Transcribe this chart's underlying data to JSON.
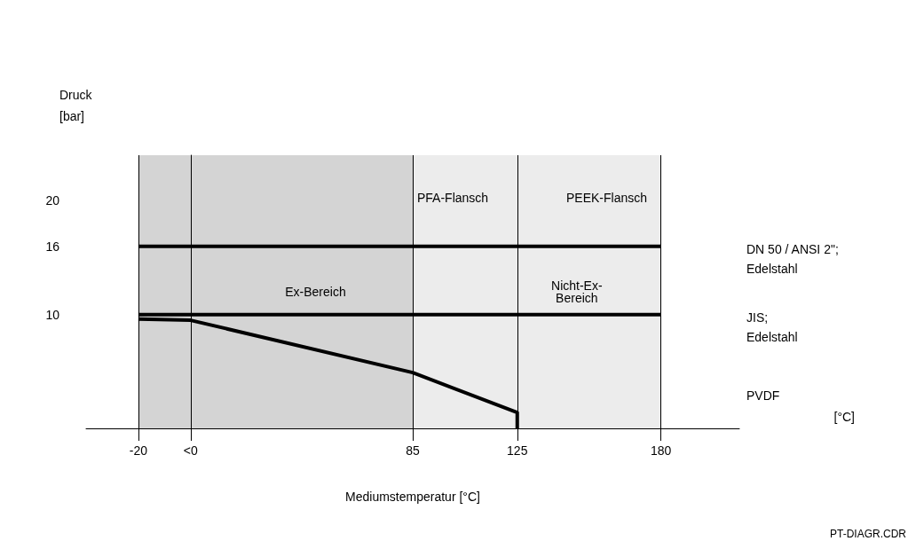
{
  "chart_data": {
    "type": "line",
    "ylabel": "Druck\n[bar]",
    "xlabel": "Mediumstemperatur [°C]",
    "series": [
      {
        "name": "DN 50 / ANSI 2\"; Edelstahl",
        "color": "#000000",
        "x": [
          -20,
          180
        ],
        "values": [
          16,
          16
        ]
      },
      {
        "name": "JIS; Edelstahl",
        "color": "#000000",
        "x": [
          -20,
          180
        ],
        "values": [
          10,
          10
        ]
      },
      {
        "name": "PVDF",
        "color": "#000000",
        "x": [
          -20,
          0,
          85,
          125,
          125
        ],
        "values": [
          9.6,
          9.5,
          4.9,
          1.4,
          0
        ]
      }
    ],
    "xlim": [
      -40,
      210
    ],
    "xticks": [
      -20,
      {
        "value": 0,
        "label": "<0"
      },
      85,
      125,
      180
    ],
    "ylim": [
      0,
      24
    ],
    "yticks": [
      10,
      16,
      20
    ],
    "bands": [
      {
        "axis": "x",
        "from": -20,
        "to": 85,
        "label": "Ex-Bereich",
        "color": "#d4d4d4"
      },
      {
        "axis": "x",
        "from": 85,
        "to": 180,
        "label": "Nicht-Ex-\nBereich",
        "color": "#ececec"
      }
    ],
    "ref_lines": [
      {
        "axis": "x",
        "value": -20
      },
      {
        "axis": "x",
        "value": 0
      },
      {
        "axis": "x",
        "value": 85
      },
      {
        "axis": "x",
        "value": 125
      },
      {
        "axis": "x",
        "value": 180
      }
    ],
    "annotations": [
      "PFA-Flansch",
      "PEEK-Flansch",
      "[°C]",
      "PT-DIAGR.CDR"
    ],
    "grid": false,
    "legend": false,
    "marker": "none",
    "line_style": "solid"
  }
}
